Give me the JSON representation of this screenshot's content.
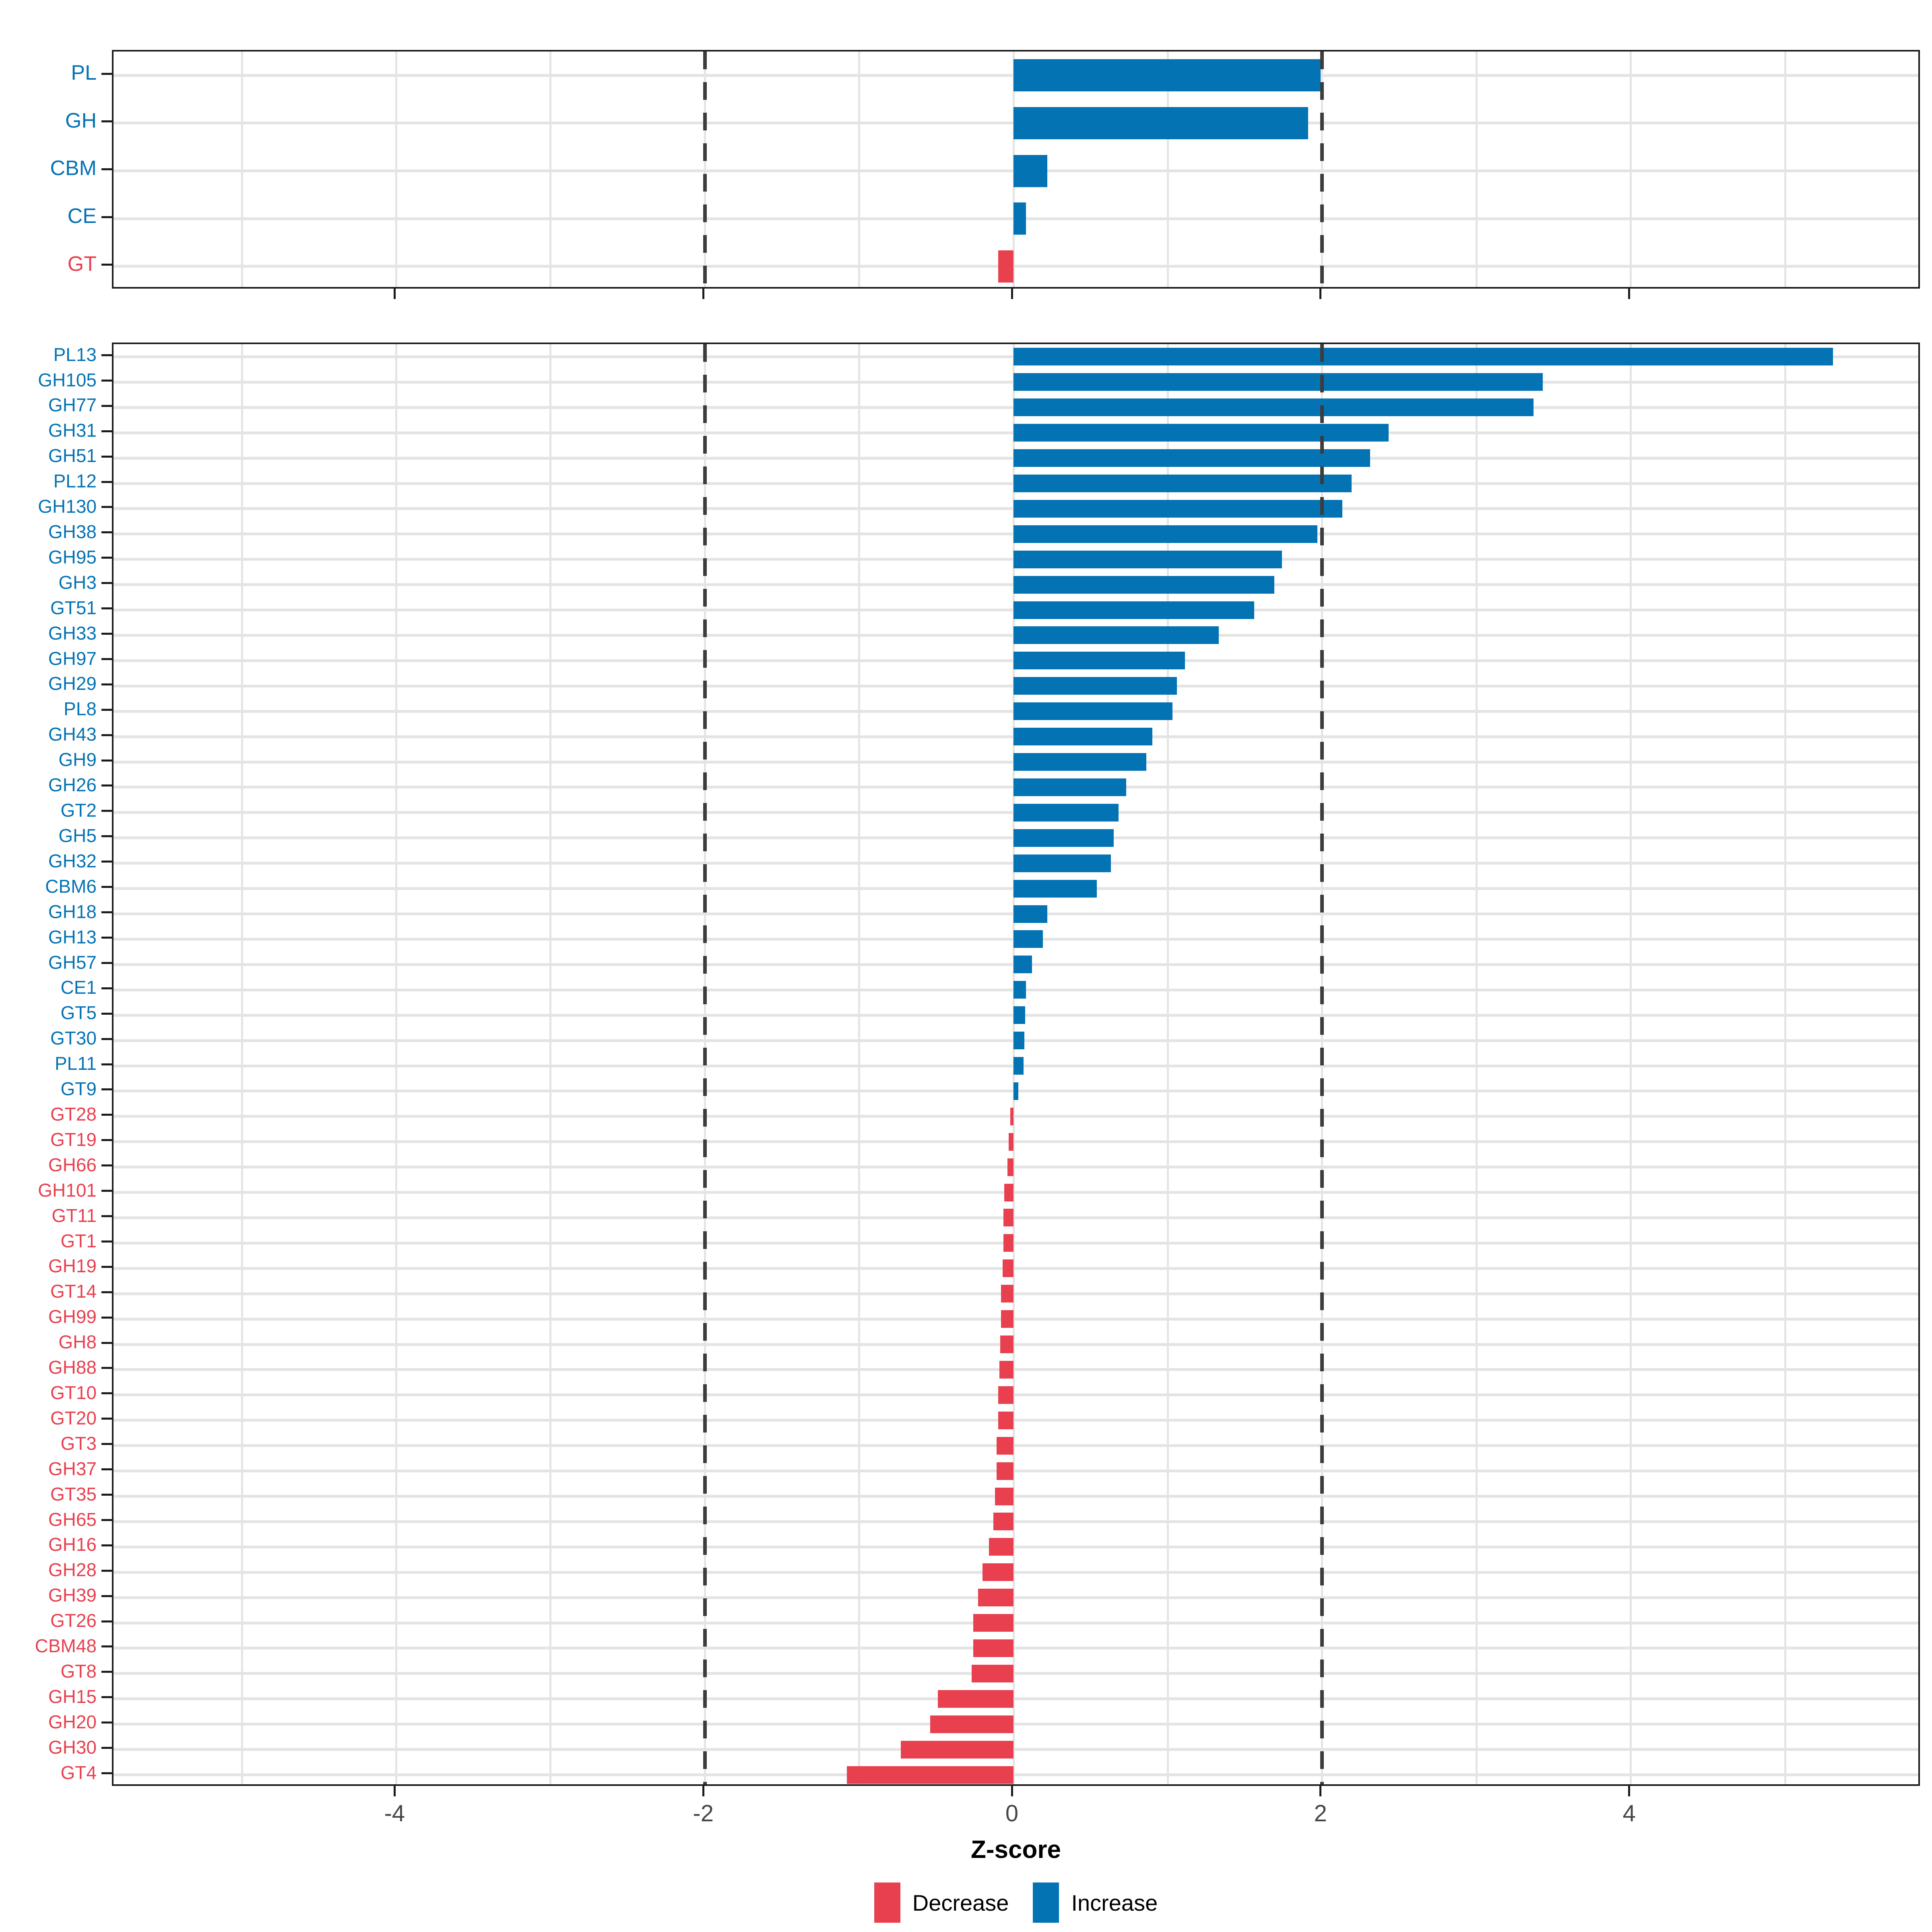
{
  "chart_data": {
    "type": "bar",
    "orientation": "horizontal",
    "title": "",
    "xlabel": "Z-score",
    "ylabel": "",
    "x_ticks": [
      -4,
      -2,
      0,
      2,
      4
    ],
    "x_tick_labels": [
      "-4",
      "-2",
      "0",
      "2",
      "4"
    ],
    "x_range": [
      -5.85,
      5.9
    ],
    "dashed_reference_lines": [
      -2,
      2
    ],
    "grid": "on",
    "legend_position": "bottom",
    "colors": {
      "increase": "#0473b4",
      "decrease": "#e8404f"
    },
    "legend": [
      {
        "label": "Decrease",
        "color": "#e8404f"
      },
      {
        "label": "Increase",
        "color": "#0473b4"
      }
    ],
    "panels": [
      {
        "name": "family-summary",
        "categories": [
          "PL",
          "GH",
          "CBM",
          "CE",
          "GT"
        ],
        "values": [
          1.99,
          1.91,
          0.22,
          0.08,
          -0.1
        ]
      },
      {
        "name": "family-detail",
        "categories": [
          "PL13",
          "GH105",
          "GH77",
          "GH31",
          "GH51",
          "PL12",
          "GH130",
          "GH38",
          "GH95",
          "GH3",
          "GT51",
          "GH33",
          "GH97",
          "GH29",
          "PL8",
          "GH43",
          "GH9",
          "GH26",
          "GT2",
          "GH5",
          "GH32",
          "CBM6",
          "GH18",
          "GH13",
          "GH57",
          "CE1",
          "GT5",
          "GT30",
          "PL11",
          "GT9",
          "GT28",
          "GT19",
          "GH66",
          "GH101",
          "GT11",
          "GT1",
          "GH19",
          "GT14",
          "GH99",
          "GH8",
          "GH88",
          "GT10",
          "GT20",
          "GT3",
          "GH37",
          "GT35",
          "GH65",
          "GH16",
          "GH28",
          "GH39",
          "GT26",
          "CBM48",
          "GT8",
          "GH15",
          "GH20",
          "GH30",
          "GT4"
        ],
        "values": [
          5.31,
          3.43,
          3.37,
          2.43,
          2.31,
          2.19,
          2.13,
          1.97,
          1.74,
          1.69,
          1.56,
          1.33,
          1.11,
          1.06,
          1.03,
          0.9,
          0.86,
          0.73,
          0.68,
          0.65,
          0.63,
          0.54,
          0.22,
          0.19,
          0.12,
          0.08,
          0.075,
          0.07,
          0.065,
          0.03,
          -0.02,
          -0.03,
          -0.04,
          -0.06,
          -0.065,
          -0.065,
          -0.07,
          -0.08,
          -0.08,
          -0.085,
          -0.09,
          -0.1,
          -0.1,
          -0.11,
          -0.11,
          -0.12,
          -0.13,
          -0.16,
          -0.2,
          -0.23,
          -0.26,
          -0.26,
          -0.27,
          -0.49,
          -0.54,
          -0.73,
          -1.08
        ]
      }
    ]
  }
}
